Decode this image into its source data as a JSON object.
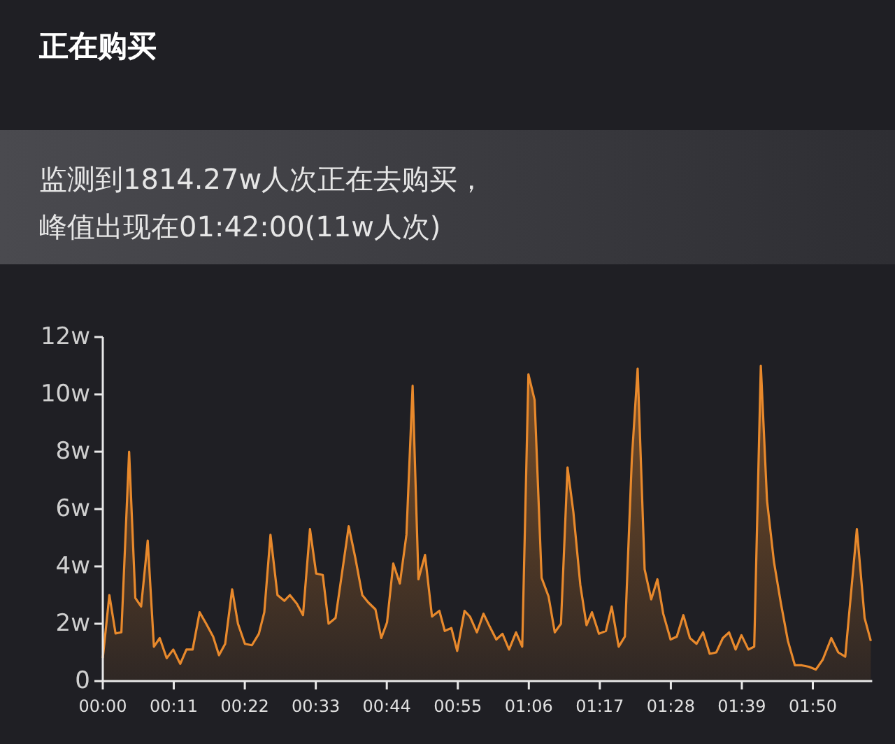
{
  "chart_data": {
    "type": "area",
    "title": "正在购买",
    "annotations": [
      "监测到1814.27w人次正在去购买，",
      "峰值出现在01:42:00(11w人次)"
    ],
    "x": [
      0,
      0.017,
      0.033,
      0.048,
      0.068,
      0.084,
      0.099,
      0.116,
      0.132,
      0.147,
      0.165,
      0.182,
      0.2,
      0.216,
      0.232,
      0.25,
      0.267,
      0.285,
      0.3,
      0.316,
      0.334,
      0.349,
      0.367,
      0.385,
      0.403,
      0.417,
      0.433,
      0.451,
      0.469,
      0.483,
      0.501,
      0.517,
      0.535,
      0.551,
      0.568,
      0.583,
      0.601,
      0.635,
      0.652,
      0.67,
      0.685,
      0.704,
      0.719,
      0.734,
      0.75,
      0.767,
      0.784,
      0.8,
      0.815,
      0.832,
      0.85,
      0.869,
      0.883,
      0.9,
      0.915,
      0.934,
      0.948,
      0.966,
      0.983,
      0.999,
      1.016,
      1.032,
      1.049,
      1.067,
      1.083,
      1.099,
      1.115,
      1.133,
      1.151,
      1.167,
      1.183,
      1.2,
      1.215,
      1.233,
      1.249,
      1.263,
      1.281,
      1.299,
      1.314,
      1.332,
      1.348,
      1.366,
      1.381,
      1.399,
      1.416,
      1.432,
      1.447,
      1.466,
      1.482,
      1.499,
      1.516,
      1.533,
      1.55,
      1.567,
      1.584,
      1.601,
      1.617,
      1.634,
      1.649,
      1.667,
      1.682,
      1.699,
      1.715,
      1.733,
      1.751,
      1.769,
      1.787,
      1.805,
      1.823,
      1.841,
      1.859,
      1.881,
      1.899,
      1.917,
      1.947,
      1.967,
      1.983
    ],
    "series": [
      {
        "color": "#e8892c",
        "values": [
          0.8,
          3.0,
          1.66,
          1.7,
          8.0,
          2.9,
          2.6,
          4.9,
          1.2,
          1.5,
          0.8,
          1.1,
          0.6,
          1.1,
          1.1,
          2.4,
          2.0,
          1.55,
          0.9,
          1.3,
          3.2,
          2.0,
          1.3,
          1.25,
          1.65,
          2.4,
          5.1,
          3.0,
          2.8,
          3.0,
          2.7,
          2.3,
          5.3,
          3.75,
          3.7,
          2.0,
          2.2,
          5.4,
          4.3,
          3.0,
          2.75,
          2.5,
          1.5,
          2.05,
          4.1,
          3.4,
          5.1,
          10.3,
          3.55,
          4.4,
          2.25,
          2.45,
          1.75,
          1.85,
          1.05,
          2.45,
          2.25,
          1.7,
          2.35,
          1.9,
          1.45,
          1.65,
          1.1,
          1.7,
          1.2,
          10.7,
          9.8,
          3.6,
          2.95,
          1.7,
          2.0,
          7.45,
          5.9,
          3.35,
          1.95,
          2.4,
          1.65,
          1.75,
          2.6,
          1.2,
          1.55,
          7.75,
          10.9,
          3.9,
          2.85,
          3.55,
          2.35,
          1.45,
          1.55,
          2.3,
          1.5,
          1.3,
          1.7,
          0.95,
          1.0,
          1.5,
          1.7,
          1.1,
          1.6,
          1.1,
          1.2,
          11.0,
          6.3,
          4.15,
          2.7,
          1.4,
          0.55,
          0.55,
          0.5,
          0.4,
          0.75,
          1.5,
          1.0,
          0.85,
          5.3,
          2.2,
          1.4
        ]
      }
    ],
    "xlim": [
      0,
      1.983
    ],
    "xticks": [
      {
        "value": 0,
        "label": "00:00"
      },
      {
        "value": 0.1833,
        "label": "00:11"
      },
      {
        "value": 0.3667,
        "label": "00:22"
      },
      {
        "value": 0.55,
        "label": "00:33"
      },
      {
        "value": 0.7333,
        "label": "00:44"
      },
      {
        "value": 0.9167,
        "label": "00:55"
      },
      {
        "value": 1.1,
        "label": "01:06"
      },
      {
        "value": 1.2833,
        "label": "01:17"
      },
      {
        "value": 1.4667,
        "label": "01:28"
      },
      {
        "value": 1.65,
        "label": "01:39"
      },
      {
        "value": 1.8333,
        "label": "01:50"
      }
    ],
    "ylim": [
      0,
      12
    ],
    "yticks": [
      0,
      {
        "value": 2,
        "label": "2w"
      },
      {
        "value": 4,
        "label": "4w"
      },
      {
        "value": 6,
        "label": "6w"
      },
      {
        "value": 8,
        "label": "8w"
      },
      {
        "value": 10,
        "label": "10w"
      },
      {
        "value": 12,
        "label": "12w"
      }
    ],
    "grid": false
  }
}
